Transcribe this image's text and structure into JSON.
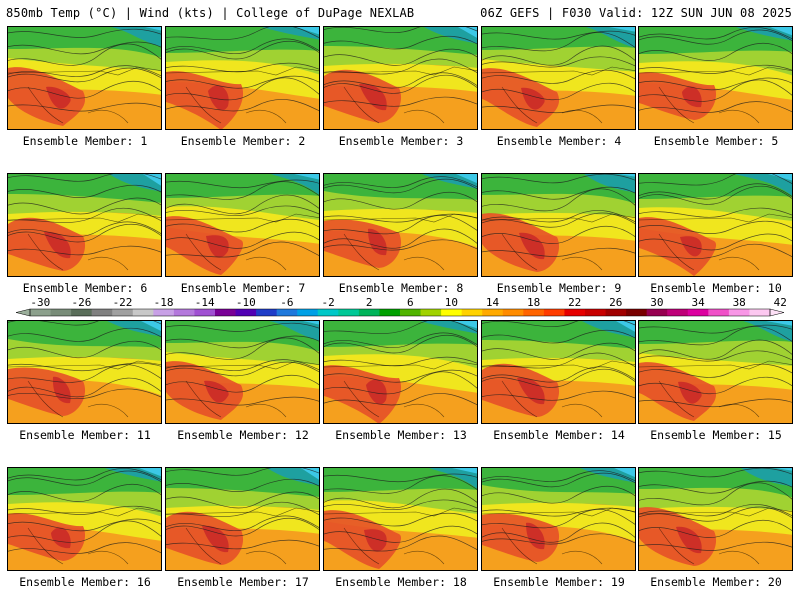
{
  "header": {
    "title_left": "850mb Temp (°C) | Wind (kts) | College of DuPage NEXLAB",
    "title_right": "06Z GEFS | F030 Valid: 12Z SUN JUN 08 2025"
  },
  "members": [
    {
      "id": 1,
      "label": "Ensemble Member: 1"
    },
    {
      "id": 2,
      "label": "Ensemble Member: 2"
    },
    {
      "id": 3,
      "label": "Ensemble Member: 3"
    },
    {
      "id": 4,
      "label": "Ensemble Member: 4"
    },
    {
      "id": 5,
      "label": "Ensemble Member: 5"
    },
    {
      "id": 6,
      "label": "Ensemble Member: 6"
    },
    {
      "id": 7,
      "label": "Ensemble Member: 7"
    },
    {
      "id": 8,
      "label": "Ensemble Member: 8"
    },
    {
      "id": 9,
      "label": "Ensemble Member: 9"
    },
    {
      "id": 10,
      "label": "Ensemble Member: 10"
    },
    {
      "id": 11,
      "label": "Ensemble Member: 11"
    },
    {
      "id": 12,
      "label": "Ensemble Member: 12"
    },
    {
      "id": 13,
      "label": "Ensemble Member: 13"
    },
    {
      "id": 14,
      "label": "Ensemble Member: 14"
    },
    {
      "id": 15,
      "label": "Ensemble Member: 15"
    },
    {
      "id": 16,
      "label": "Ensemble Member: 16"
    },
    {
      "id": 17,
      "label": "Ensemble Member: 17"
    },
    {
      "id": 18,
      "label": "Ensemble Member: 18"
    },
    {
      "id": 19,
      "label": "Ensemble Member: 19"
    },
    {
      "id": 20,
      "label": "Ensemble Member: 20"
    }
  ],
  "colorbar": {
    "tick_labels": [
      "-30",
      "-26",
      "-22",
      "-18",
      "-14",
      "-10",
      "-6",
      "-2",
      "2",
      "6",
      "10",
      "14",
      "18",
      "22",
      "26",
      "30",
      "34",
      "38",
      "42"
    ],
    "colors": [
      "#8ca08c",
      "#788c78",
      "#5a6e5a",
      "#808080",
      "#a0a0a0",
      "#c8c8c8",
      "#c8a0e6",
      "#b478dc",
      "#a050d2",
      "#780096",
      "#5000b4",
      "#1e3cc8",
      "#1e78dc",
      "#00a0e6",
      "#00c8c8",
      "#00c896",
      "#00b45a",
      "#00a000",
      "#50b400",
      "#a0d200",
      "#ffff00",
      "#ffd200",
      "#ffaa00",
      "#ff8c00",
      "#ff6400",
      "#ff3c00",
      "#e60000",
      "#c80000",
      "#a00000",
      "#780000",
      "#960050",
      "#be0078",
      "#dc00a0",
      "#f050c8",
      "#f896e6",
      "#fcc8f0"
    ]
  },
  "map_colors": {
    "green": "#3cb43c",
    "lime": "#a0d232",
    "yellow": "#f0e61e",
    "orange": "#f5a01e",
    "red": "#e65028",
    "darkred": "#c82828",
    "teal": "#1ea0a0",
    "cyan": "#3cc8e6"
  }
}
